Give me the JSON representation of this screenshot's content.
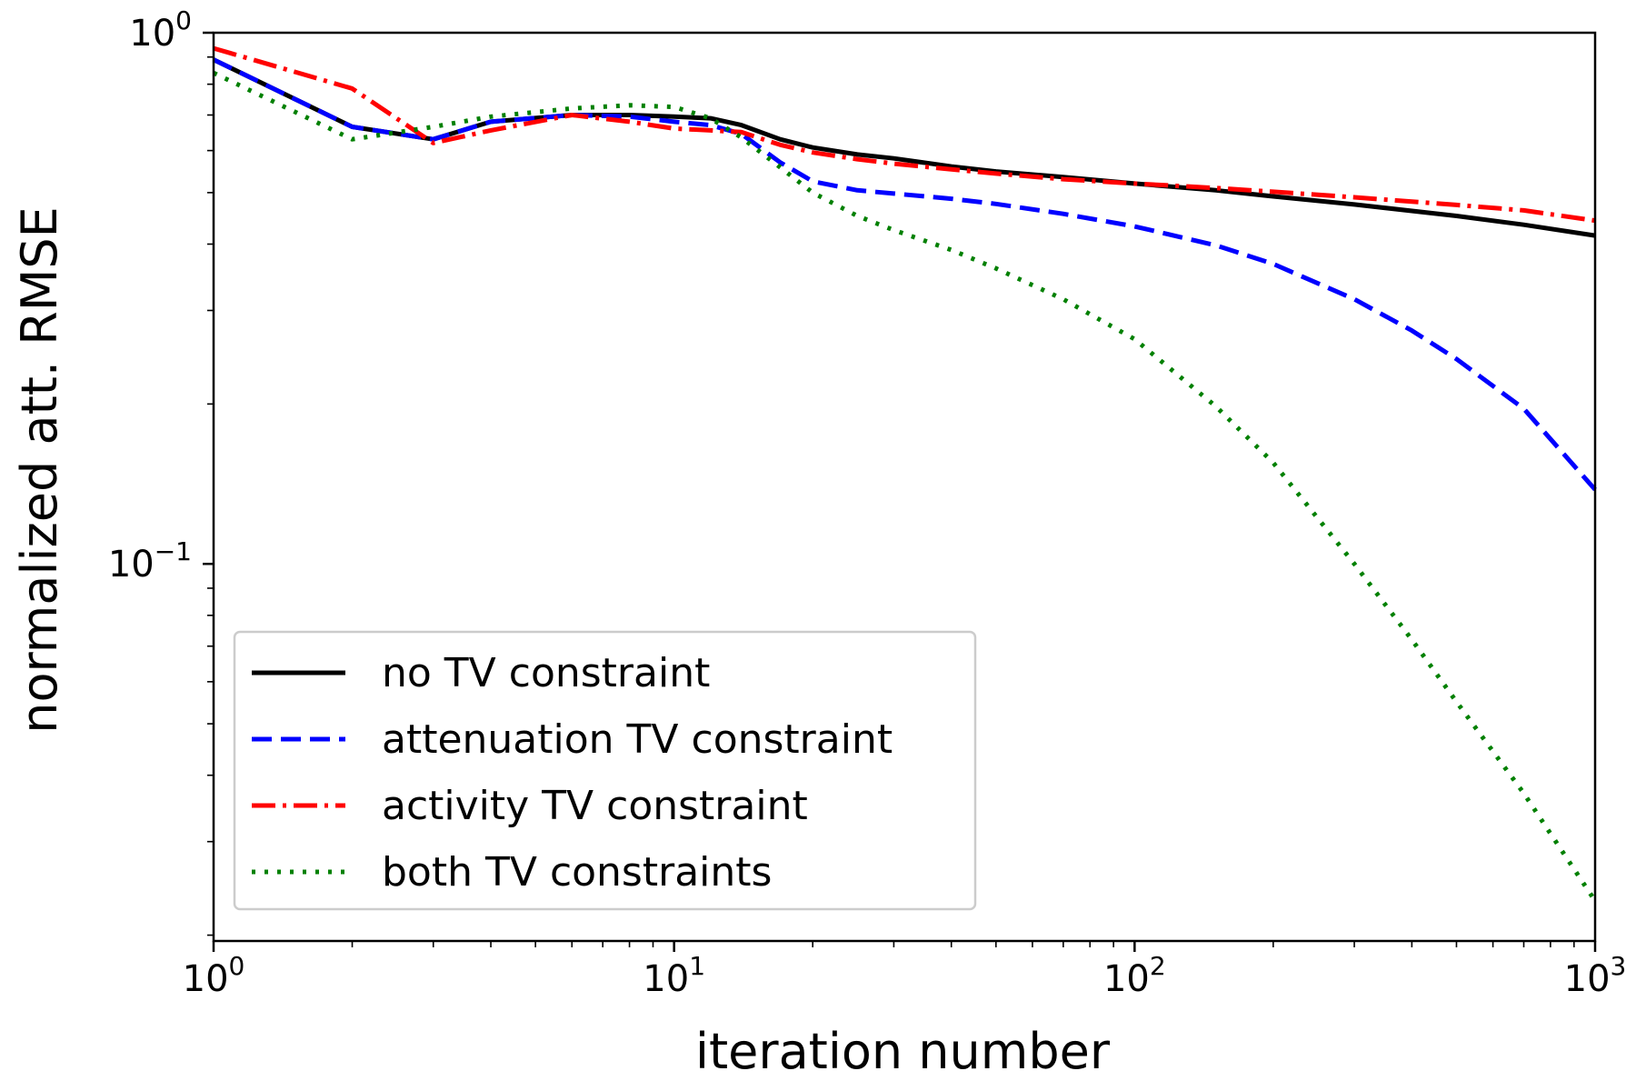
{
  "chart_data": {
    "type": "line",
    "xlabel": "iteration number",
    "ylabel": "normalized att. RMSE",
    "xscale": "log",
    "yscale": "log",
    "xlim": [
      1,
      1000
    ],
    "ylim": [
      0.0195,
      1.0
    ],
    "x_ticks": [
      {
        "base": "10",
        "exp": "0",
        "value": 1
      },
      {
        "base": "10",
        "exp": "1",
        "value": 10
      },
      {
        "base": "10",
        "exp": "2",
        "value": 100
      },
      {
        "base": "10",
        "exp": "3",
        "value": 1000
      }
    ],
    "y_ticks": [
      {
        "base": "10",
        "exp": "0",
        "value": 1
      },
      {
        "base": "10",
        "exp": "−1",
        "value": 0.1
      }
    ],
    "grid": false,
    "legend_position": "lower-left",
    "series": [
      {
        "name": "no TV constraint",
        "color": "#000000",
        "style": "solid",
        "x": [
          1,
          2,
          3,
          4,
          6,
          8,
          10,
          12,
          14,
          17,
          20,
          25,
          30,
          40,
          50,
          70,
          100,
          150,
          200,
          300,
          500,
          700,
          1000
        ],
        "y": [
          0.89,
          0.665,
          0.63,
          0.68,
          0.7,
          0.7,
          0.695,
          0.69,
          0.67,
          0.63,
          0.608,
          0.59,
          0.58,
          0.56,
          0.548,
          0.535,
          0.52,
          0.505,
          0.492,
          0.475,
          0.452,
          0.435,
          0.415
        ]
      },
      {
        "name": "attenuation TV constraint",
        "color": "#0000ff",
        "style": "dashed",
        "x": [
          1,
          2,
          3,
          4,
          6,
          8,
          10,
          12,
          14,
          17,
          20,
          25,
          30,
          40,
          50,
          70,
          100,
          150,
          200,
          300,
          400,
          500,
          700,
          1000
        ],
        "y": [
          0.89,
          0.665,
          0.63,
          0.68,
          0.7,
          0.695,
          0.68,
          0.67,
          0.645,
          0.57,
          0.525,
          0.505,
          0.498,
          0.487,
          0.476,
          0.456,
          0.432,
          0.398,
          0.367,
          0.315,
          0.275,
          0.243,
          0.196,
          0.138
        ]
      },
      {
        "name": "activity TV constraint",
        "color": "#ff0000",
        "style": "dashdot",
        "x": [
          1,
          2,
          3,
          4,
          6,
          8,
          10,
          12,
          14,
          17,
          20,
          25,
          30,
          40,
          50,
          70,
          100,
          150,
          200,
          300,
          500,
          700,
          1000
        ],
        "y": [
          0.935,
          0.785,
          0.62,
          0.655,
          0.7,
          0.68,
          0.66,
          0.655,
          0.65,
          0.615,
          0.595,
          0.578,
          0.567,
          0.553,
          0.543,
          0.53,
          0.52,
          0.51,
          0.502,
          0.49,
          0.474,
          0.463,
          0.443
        ]
      },
      {
        "name": "both TV constraints",
        "color": "#008000",
        "style": "dotted",
        "x": [
          1,
          2,
          3,
          4,
          6,
          8,
          10,
          12,
          14,
          17,
          20,
          25,
          30,
          40,
          50,
          70,
          100,
          150,
          200,
          300,
          400,
          500,
          700,
          1000
        ],
        "y": [
          0.84,
          0.63,
          0.665,
          0.695,
          0.72,
          0.73,
          0.725,
          0.69,
          0.635,
          0.558,
          0.5,
          0.452,
          0.425,
          0.39,
          0.36,
          0.315,
          0.265,
          0.198,
          0.155,
          0.1,
          0.072,
          0.055,
          0.037,
          0.0232
        ]
      }
    ]
  }
}
